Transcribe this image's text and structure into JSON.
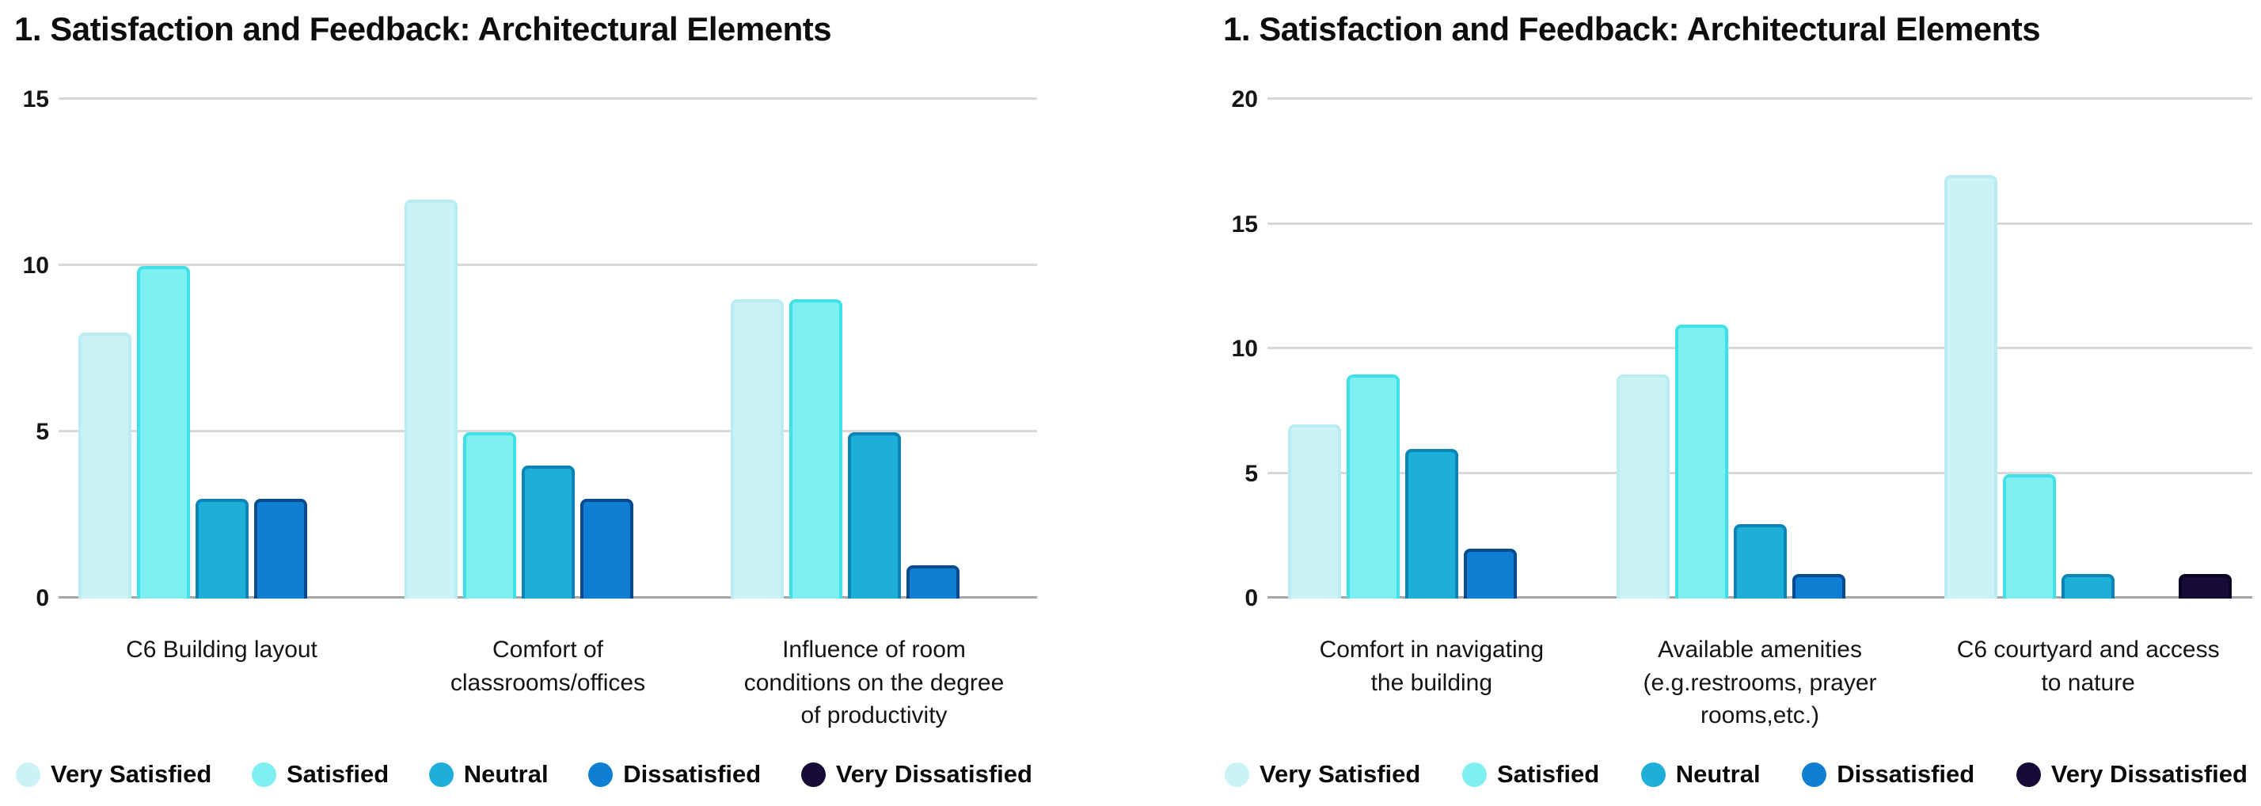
{
  "page": {
    "background": "#ffffff"
  },
  "colors": {
    "gridline": "#d8d8d8",
    "baseline": "#a6a6a6",
    "text": "#111111"
  },
  "chart_data": [
    {
      "type": "bar",
      "title": "1. Satisfaction and Feedback: Architectural Elements",
      "categories": [
        "C6 Building layout",
        "Comfort of classrooms/offices",
        "Influence of room conditions on the degree of productivity"
      ],
      "series": [
        {
          "name": "Very Satisfied",
          "color": "#cbf3f6",
          "edge": "#b9edf2",
          "values": [
            8,
            12,
            9
          ]
        },
        {
          "name": "Satisfied",
          "color": "#7ff0f1",
          "edge": "#3fe1e7",
          "values": [
            10,
            5,
            9
          ]
        },
        {
          "name": "Neutral",
          "color": "#1eaeda",
          "edge": "#0c84b6",
          "values": [
            3,
            4,
            5
          ]
        },
        {
          "name": "Dissatisfied",
          "color": "#0f7fd4",
          "edge": "#084a8e",
          "values": [
            3,
            3,
            1
          ]
        },
        {
          "name": "Very Dissatisfied",
          "color": "#170b38",
          "edge": "#0a0520",
          "values": [
            0,
            0,
            0
          ]
        }
      ],
      "xlabel": "",
      "ylabel": "",
      "ylim": [
        0,
        15
      ],
      "yticks": [
        0,
        5,
        10,
        15
      ],
      "grid": true,
      "legend_position": "bottom"
    },
    {
      "type": "bar",
      "title": "1. Satisfaction and Feedback: Architectural Elements",
      "categories": [
        "Comfort in navigating the building",
        "Available amenities (e.g.restrooms, prayer rooms,etc.)",
        "C6 courtyard and access to nature"
      ],
      "series": [
        {
          "name": "Very Satisfied",
          "color": "#cbf3f6",
          "edge": "#b9edf2",
          "values": [
            7,
            9,
            17
          ]
        },
        {
          "name": "Satisfied",
          "color": "#7ff0f1",
          "edge": "#3fe1e7",
          "values": [
            9,
            11,
            5
          ]
        },
        {
          "name": "Neutral",
          "color": "#1eaeda",
          "edge": "#0c84b6",
          "values": [
            6,
            3,
            1
          ]
        },
        {
          "name": "Dissatisfied",
          "color": "#0f7fd4",
          "edge": "#084a8e",
          "values": [
            2,
            1,
            0
          ]
        },
        {
          "name": "Very Dissatisfied",
          "color": "#170b38",
          "edge": "#0a0520",
          "values": [
            0,
            0,
            1
          ]
        }
      ],
      "xlabel": "",
      "ylabel": "",
      "ylim": [
        0,
        20
      ],
      "yticks": [
        0,
        5,
        10,
        15,
        20
      ],
      "grid": true,
      "legend_position": "bottom"
    }
  ]
}
